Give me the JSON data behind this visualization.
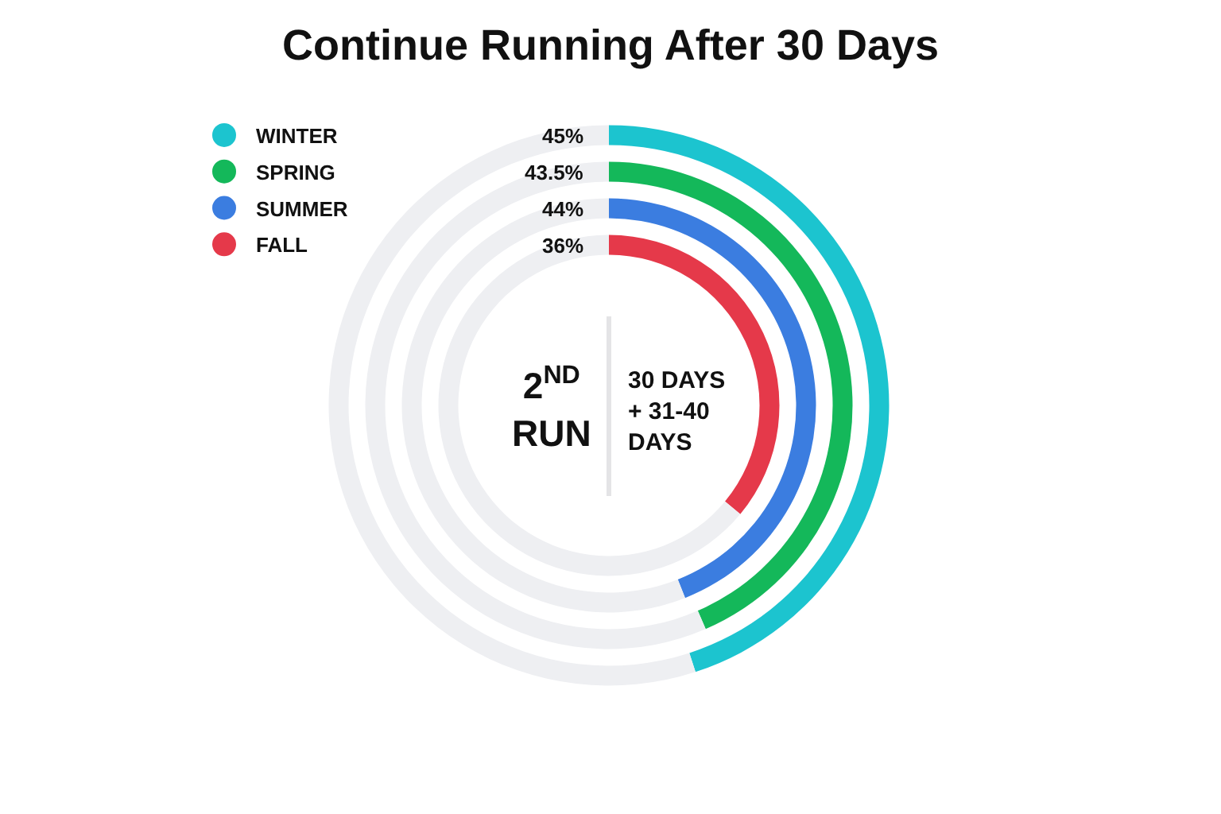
{
  "chart_data": [
    {
      "type": "donut",
      "title": "Continue Running After 30 Days",
      "categories": [
        "WINTER",
        null
      ],
      "values": [
        45,
        55
      ],
      "colors": [
        "#1cc4cf",
        "#eeeff2"
      ],
      "value_labels": [
        "45%",
        null
      ],
      "legend": "top left",
      "annotations": [
        "2$^{ND}$\nRUN",
        "30 DAYS\n+ 31-40\nDAYS"
      ]
    },
    {
      "type": "donut",
      "categories": [
        "SPRING",
        null
      ],
      "values": [
        43.5,
        56.5
      ],
      "colors": [
        "#14b85a",
        "#eeeff2"
      ],
      "value_labels": [
        "43.5%",
        null
      ],
      "legend": "top left"
    },
    {
      "type": "donut",
      "categories": [
        "SUMMER",
        null
      ],
      "values": [
        44,
        56
      ],
      "colors": [
        "#3b7de0",
        "#eeeff2"
      ],
      "value_labels": [
        "44%",
        null
      ],
      "legend": "top left"
    },
    {
      "type": "donut",
      "categories": [
        "FALL",
        null
      ],
      "values": [
        36,
        64
      ],
      "colors": [
        "#e5394a",
        "#eeeff2"
      ],
      "value_labels": [
        "36%",
        null
      ],
      "legend": "top left"
    }
  ]
}
